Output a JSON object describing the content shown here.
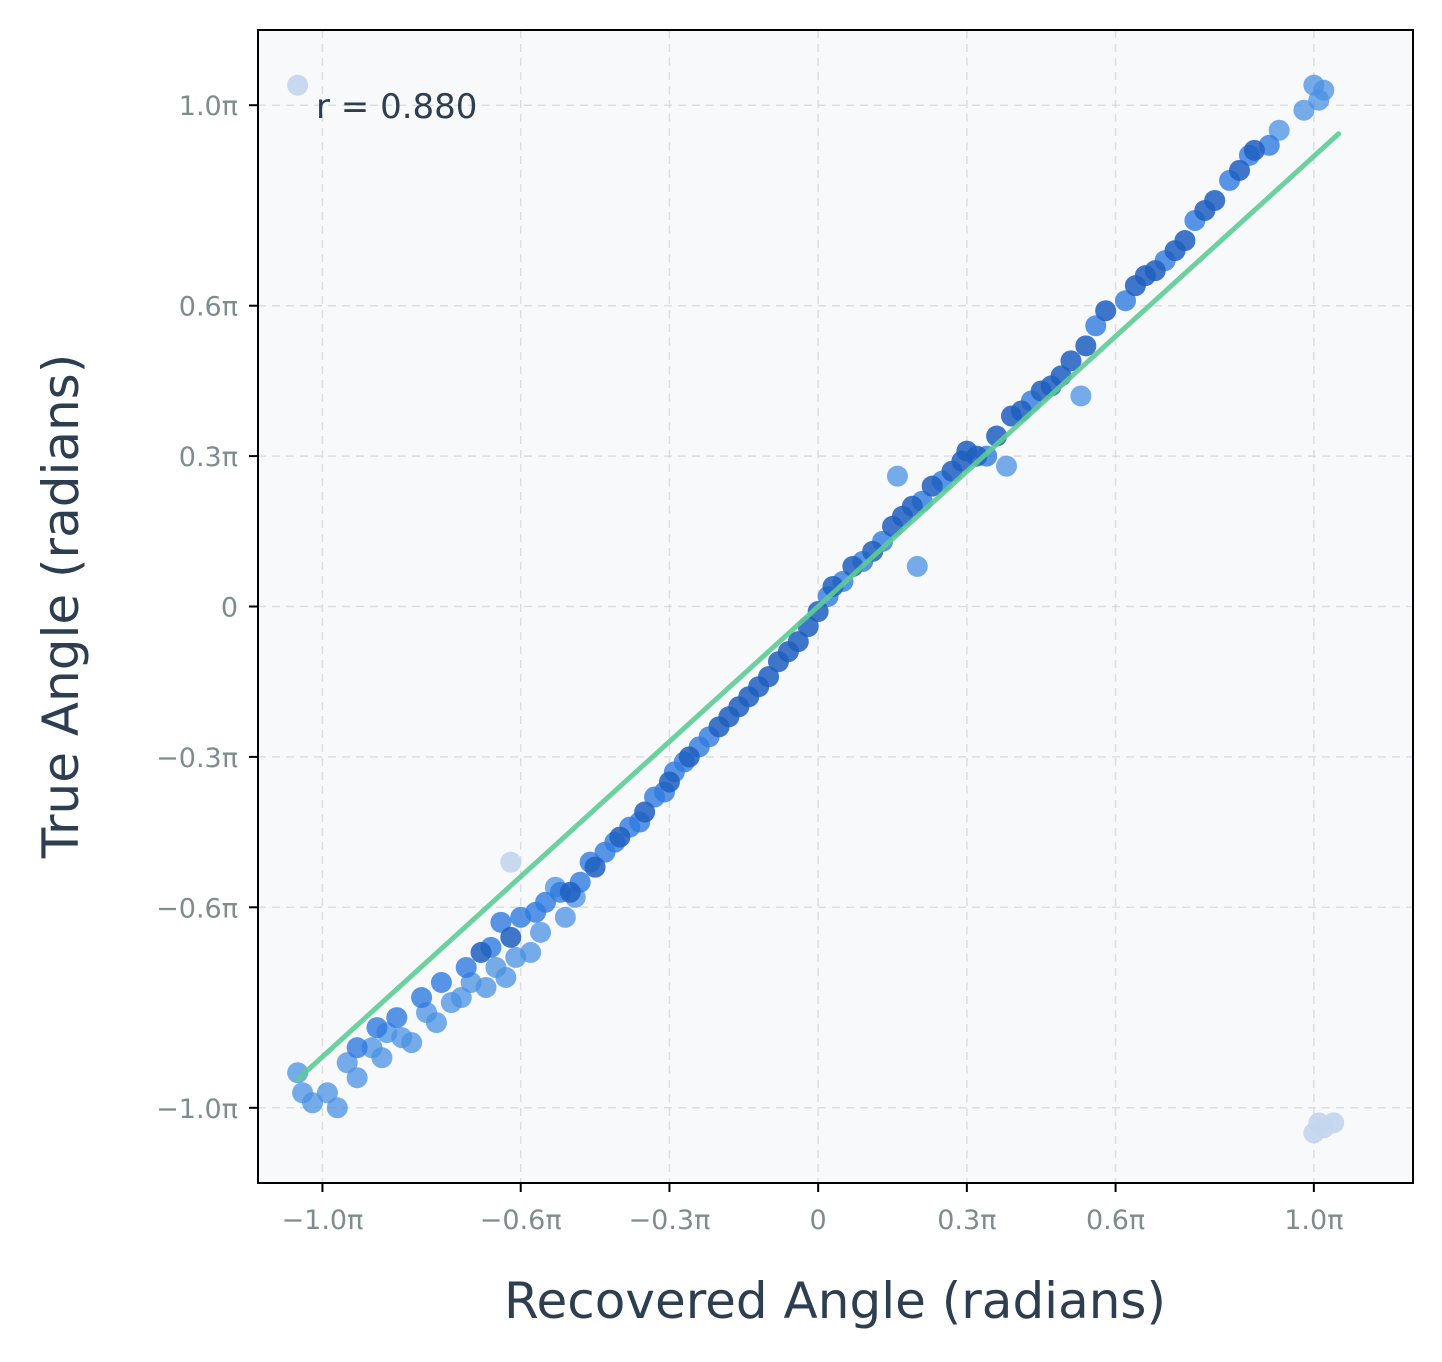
{
  "chart_data": {
    "type": "scatter",
    "title": "",
    "xlabel": "Recovered Angle (radians)",
    "ylabel": "True Angle (radians)",
    "annotation": "r = 0.880",
    "xlim": [
      -1.13,
      1.2
    ],
    "ylim": [
      -1.15,
      1.15
    ],
    "tick_values": [
      -1.0,
      -0.6,
      -0.3,
      0,
      0.3,
      0.6,
      1.0
    ],
    "x_tick_labels": [
      "−1.0π",
      "−0.6π",
      "−0.3π",
      "0",
      "0.3π",
      "0.6π",
      "1.0π"
    ],
    "y_tick_labels": [
      "−1.0π",
      "−0.6π",
      "−0.3π",
      "0",
      "0.3π",
      "0.6π",
      "1.0π"
    ],
    "grid": true,
    "colors": {
      "background": "#f7f9fb",
      "point_dark": "#1f5fbf",
      "point_mid": "#2f7ae0",
      "point_light": "#4a90e2",
      "point_faint": "#c5d6ee",
      "fit_line": "#5dcc96",
      "frame": "#000000"
    },
    "fit_line": {
      "x": [
        -1.05,
        1.05
      ],
      "y": [
        -0.943,
        0.943
      ]
    },
    "series": [
      {
        "tone": "faint",
        "points": [
          [
            -1.05,
            1.04
          ],
          [
            -0.62,
            -0.51
          ],
          [
            1.0,
            -1.05
          ],
          [
            1.02,
            -1.04
          ],
          [
            1.04,
            -1.03
          ],
          [
            1.01,
            -1.03
          ]
        ]
      },
      {
        "tone": "light",
        "points": [
          [
            -1.05,
            -0.93
          ],
          [
            -1.04,
            -0.97
          ],
          [
            -1.02,
            -0.99
          ],
          [
            -0.99,
            -0.97
          ],
          [
            -0.97,
            -1.0
          ],
          [
            -0.95,
            -0.91
          ],
          [
            -0.93,
            -0.94
          ],
          [
            -0.9,
            -0.88
          ],
          [
            -0.88,
            -0.9
          ],
          [
            -0.87,
            -0.85
          ],
          [
            -0.84,
            -0.86
          ],
          [
            -0.82,
            -0.87
          ],
          [
            -0.79,
            -0.81
          ],
          [
            -0.77,
            -0.83
          ],
          [
            -0.74,
            -0.79
          ],
          [
            -0.72,
            -0.78
          ],
          [
            -0.7,
            -0.75
          ],
          [
            -0.67,
            -0.76
          ],
          [
            -0.65,
            -0.72
          ],
          [
            -0.63,
            -0.74
          ],
          [
            -0.61,
            -0.7
          ],
          [
            -0.58,
            -0.69
          ],
          [
            -0.56,
            -0.65
          ],
          [
            -0.53,
            -0.56
          ],
          [
            -0.51,
            -0.62
          ],
          [
            -0.49,
            -0.58
          ],
          [
            0.2,
            0.08
          ],
          [
            0.16,
            0.26
          ],
          [
            0.38,
            0.28
          ],
          [
            0.53,
            0.42
          ],
          [
            0.93,
            0.95
          ],
          [
            0.98,
            0.99
          ],
          [
            1.0,
            1.04
          ],
          [
            1.01,
            1.01
          ],
          [
            1.02,
            1.03
          ]
        ]
      },
      {
        "tone": "mid",
        "points": [
          [
            -0.93,
            -0.88
          ],
          [
            -0.89,
            -0.84
          ],
          [
            -0.85,
            -0.82
          ],
          [
            -0.8,
            -0.78
          ],
          [
            -0.76,
            -0.75
          ],
          [
            -0.71,
            -0.72
          ],
          [
            -0.66,
            -0.68
          ],
          [
            -0.64,
            -0.63
          ],
          [
            -0.6,
            -0.62
          ],
          [
            -0.57,
            -0.61
          ],
          [
            -0.55,
            -0.59
          ],
          [
            -0.52,
            -0.57
          ],
          [
            -0.48,
            -0.55
          ],
          [
            -0.46,
            -0.51
          ],
          [
            -0.43,
            -0.49
          ],
          [
            -0.41,
            -0.47
          ],
          [
            -0.38,
            -0.44
          ],
          [
            -0.36,
            -0.43
          ],
          [
            -0.33,
            -0.38
          ],
          [
            -0.31,
            -0.37
          ],
          [
            -0.29,
            -0.33
          ],
          [
            -0.27,
            -0.31
          ],
          [
            -0.24,
            -0.28
          ],
          [
            -0.22,
            -0.26
          ],
          [
            0.02,
            0.02
          ],
          [
            0.05,
            0.05
          ],
          [
            0.09,
            0.09
          ],
          [
            0.13,
            0.13
          ],
          [
            0.21,
            0.21
          ],
          [
            0.25,
            0.25
          ],
          [
            0.34,
            0.3
          ],
          [
            0.43,
            0.41
          ],
          [
            0.56,
            0.56
          ],
          [
            0.62,
            0.61
          ],
          [
            0.7,
            0.69
          ],
          [
            0.76,
            0.77
          ],
          [
            0.83,
            0.85
          ],
          [
            0.87,
            0.9
          ],
          [
            0.91,
            0.92
          ]
        ]
      },
      {
        "tone": "dark",
        "points": [
          [
            -0.68,
            -0.69
          ],
          [
            -0.62,
            -0.66
          ],
          [
            -0.5,
            -0.57
          ],
          [
            -0.45,
            -0.52
          ],
          [
            -0.4,
            -0.46
          ],
          [
            -0.35,
            -0.41
          ],
          [
            -0.3,
            -0.35
          ],
          [
            -0.26,
            -0.3
          ],
          [
            -0.2,
            -0.24
          ],
          [
            -0.18,
            -0.22
          ],
          [
            -0.16,
            -0.2
          ],
          [
            -0.14,
            -0.18
          ],
          [
            -0.12,
            -0.16
          ],
          [
            -0.1,
            -0.14
          ],
          [
            -0.08,
            -0.11
          ],
          [
            -0.06,
            -0.09
          ],
          [
            -0.04,
            -0.07
          ],
          [
            -0.02,
            -0.04
          ],
          [
            0.0,
            -0.01
          ],
          [
            0.03,
            0.04
          ],
          [
            0.07,
            0.08
          ],
          [
            0.11,
            0.11
          ],
          [
            0.15,
            0.16
          ],
          [
            0.17,
            0.18
          ],
          [
            0.19,
            0.2
          ],
          [
            0.23,
            0.24
          ],
          [
            0.27,
            0.27
          ],
          [
            0.29,
            0.29
          ],
          [
            0.3,
            0.31
          ],
          [
            0.32,
            0.3
          ],
          [
            0.36,
            0.34
          ],
          [
            0.39,
            0.38
          ],
          [
            0.41,
            0.39
          ],
          [
            0.45,
            0.43
          ],
          [
            0.47,
            0.44
          ],
          [
            0.49,
            0.46
          ],
          [
            0.51,
            0.49
          ],
          [
            0.54,
            0.52
          ],
          [
            0.58,
            0.59
          ],
          [
            0.64,
            0.64
          ],
          [
            0.66,
            0.66
          ],
          [
            0.68,
            0.67
          ],
          [
            0.72,
            0.71
          ],
          [
            0.74,
            0.73
          ],
          [
            0.78,
            0.79
          ],
          [
            0.8,
            0.81
          ],
          [
            0.85,
            0.87
          ],
          [
            0.88,
            0.91
          ]
        ]
      }
    ]
  }
}
